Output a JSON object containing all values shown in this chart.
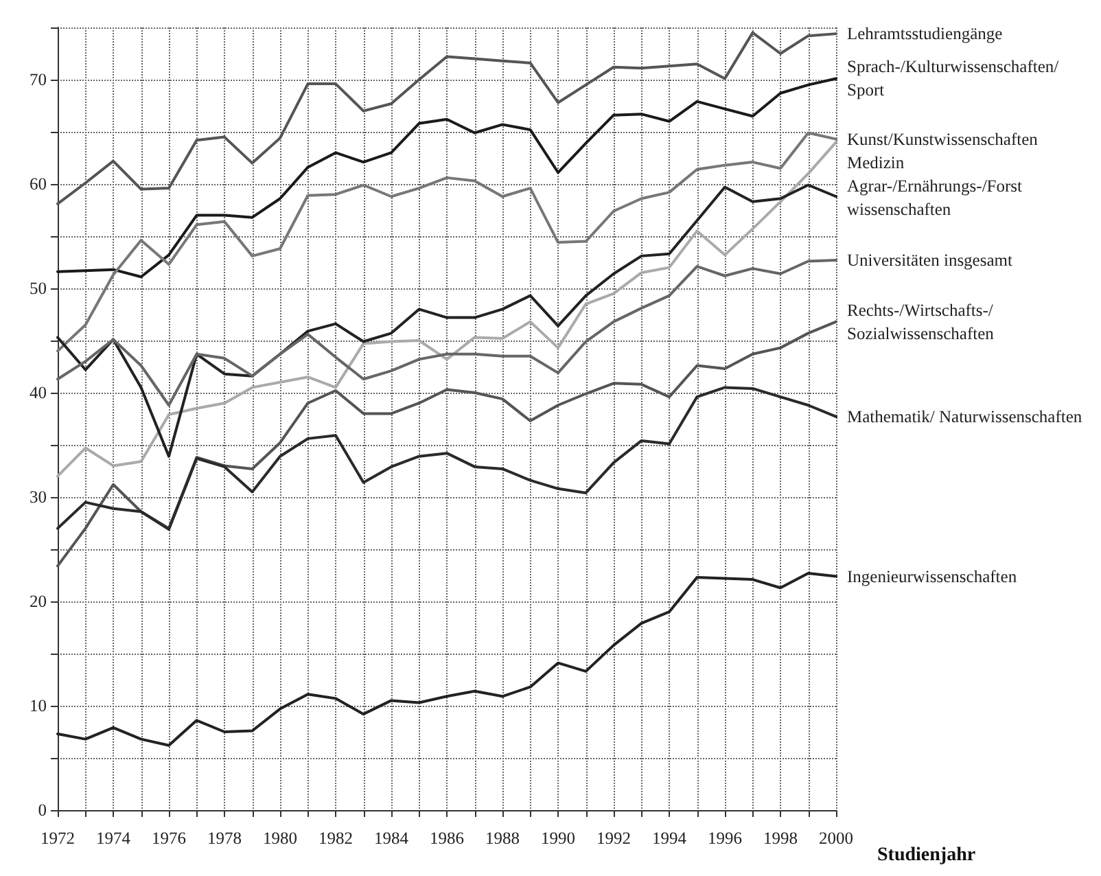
{
  "chart_data": {
    "type": "line",
    "xlabel": "Studienjahr",
    "x": [
      1972,
      1973,
      1974,
      1975,
      1976,
      1977,
      1978,
      1979,
      1980,
      1981,
      1982,
      1983,
      1984,
      1985,
      1986,
      1987,
      1988,
      1989,
      1990,
      1991,
      1992,
      1993,
      1994,
      1995,
      1996,
      1997,
      1998,
      1999,
      2000
    ],
    "series": [
      {
        "name": "Lehramtsstudiengänge",
        "color": "#555555",
        "values": [
          58.1,
          60.1,
          62.2,
          59.5,
          59.6,
          64.2,
          64.5,
          62,
          64.4,
          69.6,
          69.6,
          67,
          67.7,
          70,
          72.2,
          72,
          71.8,
          71.6,
          67.8,
          69.5,
          71.2,
          71.1,
          71.3,
          71.5,
          70.1,
          74.5,
          72.5,
          74.2,
          74.4
        ]
      },
      {
        "name": "Sprach-/Kulturwissenschaften/ Sport",
        "color": "#1a1a1a",
        "values": [
          51.6,
          51.7,
          51.8,
          51.1,
          53.2,
          57,
          57,
          56.8,
          58.6,
          61.6,
          63,
          62.1,
          63,
          65.8,
          66.2,
          64.9,
          65.7,
          65.2,
          61.1,
          63.9,
          66.6,
          66.7,
          66,
          67.9,
          67.2,
          66.5,
          68.7,
          69.5,
          70.1
        ]
      },
      {
        "name": "Kunst/Kunstwissenschaften",
        "color": "#777777",
        "values": [
          44,
          46.5,
          51.3,
          54.6,
          52.3,
          56.1,
          56.4,
          53.1,
          53.8,
          58.9,
          59,
          59.9,
          58.8,
          59.6,
          60.6,
          60.3,
          58.8,
          59.6,
          54.4,
          54.5,
          57.4,
          58.6,
          59.2,
          61.4,
          61.8,
          62.1,
          61.5,
          64.9,
          64.3
        ]
      },
      {
        "name": "Medizin",
        "color": "#aaaaaa",
        "values": [
          32,
          34.7,
          33,
          33.4,
          37.9,
          38.5,
          39,
          40.5,
          41,
          41.5,
          40.5,
          44.7,
          44.9,
          45,
          43.2,
          45.3,
          45.2,
          46.8,
          44.3,
          48.5,
          49.5,
          51.5,
          52,
          55.5,
          53.2,
          55.7,
          58.3,
          61,
          64
        ]
      },
      {
        "name": "Agrar-/Ernährungs-/Forst wissenschaften",
        "color": "#222222",
        "values": [
          45.3,
          42.2,
          45.1,
          40.5,
          33.9,
          43.7,
          41.8,
          41.6,
          43.7,
          45.9,
          46.6,
          44.9,
          45.7,
          48,
          47.2,
          47.2,
          48,
          49.3,
          46.4,
          49.3,
          51.4,
          53.1,
          53.3,
          56.5,
          59.7,
          58.3,
          58.6,
          59.9,
          58.8
        ]
      },
      {
        "name": "Universitäten insgesamt",
        "color": "#666666",
        "values": [
          41.3,
          43,
          45.1,
          42.6,
          38.8,
          43.7,
          43.3,
          41.6,
          43.7,
          45.6,
          43.4,
          41.3,
          42.1,
          43.2,
          43.7,
          43.7,
          43.5,
          43.5,
          41.9,
          44.9,
          46.8,
          48.1,
          49.3,
          52.1,
          51.2,
          51.9,
          51.4,
          52.6,
          52.7
        ]
      },
      {
        "name": "Rechts-/Wirtschafts-/ Sozialwissenschaften",
        "color": "#555555",
        "values": [
          23.4,
          27,
          31.2,
          28.6,
          27,
          33.8,
          33,
          32.7,
          35.2,
          39,
          40.2,
          38,
          38,
          39,
          40.3,
          40,
          39.4,
          37.3,
          38.8,
          39.9,
          40.9,
          40.8,
          39.6,
          42.6,
          42.3,
          43.7,
          44.3,
          45.7,
          46.8
        ]
      },
      {
        "name": "Mathematik/ Naturwissenschaften",
        "color": "#2a2a2a",
        "values": [
          27,
          29.5,
          28.9,
          28.6,
          26.9,
          33.7,
          32.9,
          30.5,
          33.9,
          35.6,
          35.9,
          31.4,
          32.9,
          33.9,
          34.2,
          32.9,
          32.7,
          31.6,
          30.8,
          30.4,
          33.3,
          35.4,
          35.1,
          39.6,
          40.5,
          40.4,
          39.6,
          38.8,
          37.7
        ]
      },
      {
        "name": "Ingenieurwissenschaften",
        "color": "#222222",
        "values": [
          7.3,
          6.8,
          7.9,
          6.8,
          6.2,
          8.6,
          7.5,
          7.6,
          9.7,
          11.1,
          10.7,
          9.2,
          10.5,
          10.3,
          10.9,
          11.4,
          10.9,
          11.8,
          14.1,
          13.3,
          15.8,
          17.9,
          19,
          22.3,
          22.2,
          22.1,
          21.3,
          22.7,
          22.4
        ]
      }
    ],
    "xlim": [
      1972,
      2000
    ],
    "xticks": [
      1972,
      {
        "value": 1973,
        "label": null
      },
      1974,
      {
        "value": 1975,
        "label": null
      },
      1976,
      {
        "value": 1977,
        "label": null
      },
      1978,
      {
        "value": 1979,
        "label": null
      },
      1980,
      {
        "value": 1981,
        "label": null
      },
      1982,
      {
        "value": 1983,
        "label": null
      },
      1984,
      {
        "value": 1985,
        "label": null
      },
      1986,
      {
        "value": 1987,
        "label": null
      },
      1988,
      {
        "value": 1989,
        "label": null
      },
      1990,
      {
        "value": 1991,
        "label": null
      },
      1992,
      {
        "value": 1993,
        "label": null
      },
      1994,
      {
        "value": 1995,
        "label": null
      },
      1996,
      {
        "value": 1997,
        "label": null
      },
      1998,
      {
        "value": 1999,
        "label": null
      },
      2000
    ],
    "ylim": [
      0,
      75
    ],
    "yticks": [
      0,
      {
        "value": 5,
        "label": null
      },
      10,
      {
        "value": 15,
        "label": null
      },
      20,
      {
        "value": 25,
        "label": null
      },
      30,
      {
        "value": 35,
        "label": null
      },
      40,
      {
        "value": 45,
        "label": null
      },
      50,
      {
        "value": 55,
        "label": null
      },
      60,
      {
        "value": 65,
        "label": null
      },
      70,
      {
        "value": 75,
        "label": null
      }
    ],
    "grid": true,
    "legend": false,
    "marker": "none",
    "line_style": "solid"
  }
}
